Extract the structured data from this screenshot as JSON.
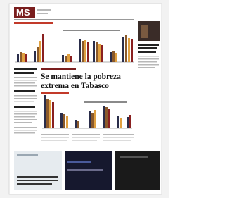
{
  "header": {
    "section": "MS"
  },
  "article": {
    "headline_line1": "Se mantiene la pobreza",
    "headline_line2": "extrema en Tabasco"
  }
}
